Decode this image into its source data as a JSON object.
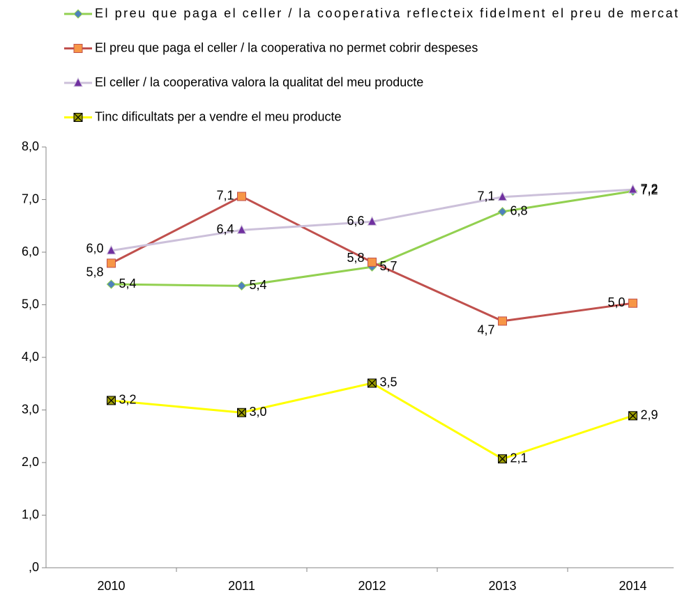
{
  "chart_data": {
    "type": "line",
    "categories": [
      "2010",
      "2011",
      "2012",
      "2013",
      "2014"
    ],
    "series": [
      {
        "name": "El preu que paga el celler / la cooperativa reflecteix fidelment el preu de mercat",
        "color": "#92d050",
        "marker_color": "#4f81bd",
        "marker": "diamond",
        "values": [
          5.39,
          5.36,
          5.72,
          6.77,
          7.16
        ],
        "value_labels": [
          "5,4",
          "5,4",
          "5,7",
          "6,8",
          "7,2"
        ]
      },
      {
        "name": "El preu que paga el celler / la cooperativa no permet cobrir despeses",
        "color": "#c0504d",
        "marker_color": "#f79646",
        "marker": "square",
        "values": [
          5.79,
          7.06,
          5.81,
          4.69,
          5.03
        ],
        "value_labels": [
          "5,8",
          "7,1",
          "5,8",
          "4,7",
          "5,0"
        ]
      },
      {
        "name": "El celler / la cooperativa valora la qualitat del meu producte",
        "color": "#ccc0da",
        "marker_color": "#7030a0",
        "marker": "triangle",
        "values": [
          6.03,
          6.42,
          6.58,
          7.05,
          7.19
        ],
        "value_labels": [
          "6,0",
          "6,4",
          "6,6",
          "7,1",
          "7,2"
        ]
      },
      {
        "name": "Tinc dificultats per a vendre el meu producte",
        "color": "#ffff00",
        "marker_color": "#9c9c00",
        "marker": "xsquare",
        "values": [
          3.18,
          2.95,
          3.51,
          2.07,
          2.89
        ],
        "value_labels": [
          "3,2",
          "3,0",
          "3,5",
          "2,1",
          "2,9"
        ]
      }
    ],
    "ylim": [
      0,
      8
    ],
    "yticks": [
      {
        "value": 0,
        "label": ",0"
      },
      {
        "value": 1,
        "label": "1,0"
      },
      {
        "value": 2,
        "label": "2,0"
      },
      {
        "value": 3,
        "label": "3,0"
      },
      {
        "value": 4,
        "label": "4,0"
      },
      {
        "value": 5,
        "label": "5,0"
      },
      {
        "value": 6,
        "label": "6,0"
      },
      {
        "value": 7,
        "label": "7,0"
      },
      {
        "value": 8,
        "label": "8,0"
      }
    ],
    "grid": false,
    "legend": "top"
  }
}
